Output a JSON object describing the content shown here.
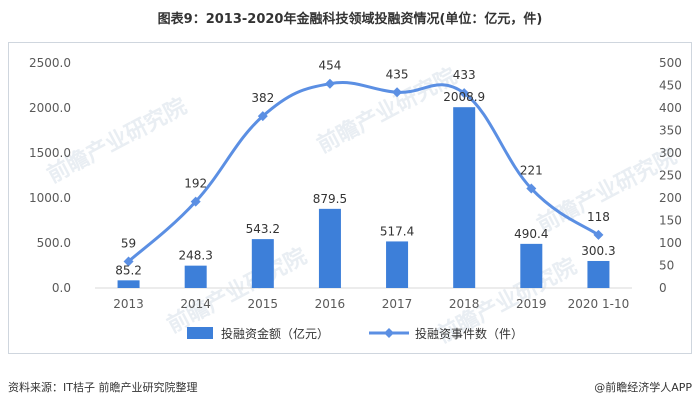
{
  "title": "图表9：2013-2020年金融科技领域投融资情况(单位：亿元，件)",
  "footer": {
    "source": "资料来源：IT桔子 前瞻产业研究院整理",
    "brand": "@前瞻经济学人APP"
  },
  "watermark": "前瞻产业研究院",
  "colors": {
    "bar": "#3d7fd9",
    "line": "#5b8fe3",
    "axis_text": "#595959",
    "grid": "#d9d9d9"
  },
  "chart_data": {
    "type": "bar",
    "categories": [
      "2013",
      "2014",
      "2015",
      "2016",
      "2017",
      "2018",
      "2019",
      "2020 1-10"
    ],
    "series": [
      {
        "name": "投融资金额（亿元）",
        "type": "bar",
        "axis": "left",
        "values": [
          85.2,
          248.3,
          543.2,
          879.5,
          517.4,
          2008.9,
          490.4,
          300.3
        ],
        "labels": [
          "85.2",
          "248.3",
          "543.2",
          "879.5",
          "517.4",
          "2008.9",
          "490.4",
          "300.3"
        ]
      },
      {
        "name": "投融资事件数（件）",
        "type": "line",
        "smooth": true,
        "axis": "right",
        "values": [
          59,
          192,
          382,
          454,
          435,
          433,
          221,
          118
        ],
        "labels": [
          "59",
          "192",
          "382",
          "454",
          "435",
          "433",
          "221",
          "118"
        ]
      }
    ],
    "y_left": {
      "min": 0,
      "max": 2500,
      "ticks": [
        0,
        500,
        1000,
        1500,
        2000,
        2500
      ],
      "tick_labels": [
        "0.0",
        "500.0",
        "1000.0",
        "1500.0",
        "2000.0",
        "2500.0"
      ]
    },
    "y_right": {
      "min": 0,
      "max": 500,
      "ticks": [
        0,
        50,
        100,
        150,
        200,
        250,
        300,
        350,
        400,
        450,
        500
      ],
      "tick_labels": [
        "0",
        "50",
        "100",
        "150",
        "200",
        "250",
        "300",
        "350",
        "400",
        "450",
        "500"
      ]
    },
    "grid": false,
    "legend_position": "bottom"
  }
}
